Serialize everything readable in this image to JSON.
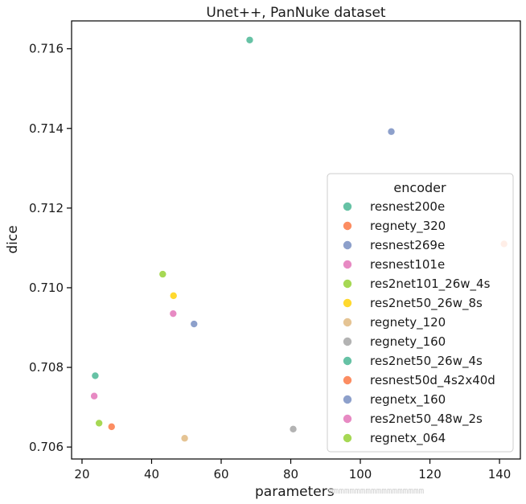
{
  "chart_data": {
    "type": "scatter",
    "title": "Unet++, PanNuke dataset",
    "xlabel": "parameters",
    "ylabel": "dice",
    "xlim": [
      17,
      146
    ],
    "ylim": [
      0.7057,
      0.7167
    ],
    "xticks": [
      20,
      40,
      60,
      80,
      100,
      120,
      140
    ],
    "yticks": [
      0.706,
      0.708,
      0.71,
      0.712,
      0.714,
      0.716
    ],
    "ytick_labels": [
      "0.706",
      "0.708",
      "0.710",
      "0.712",
      "0.714",
      "0.716"
    ],
    "legend_title": "encoder",
    "legend_position": "center-right",
    "series": [
      {
        "name": "resnest200e",
        "color": "#66c2a5",
        "x": [
          68.2
        ],
        "y": [
          0.71622
        ]
      },
      {
        "name": "regnety_320",
        "color": "#fc8d62",
        "x": [
          141.3
        ],
        "y": [
          0.7111
        ]
      },
      {
        "name": "resnest269e",
        "color": "#8da0cb",
        "x": [
          108.9
        ],
        "y": [
          0.71392
        ]
      },
      {
        "name": "resnest101e",
        "color": "#e78ac3",
        "x": [
          46.2
        ],
        "y": [
          0.70935
        ]
      },
      {
        "name": "res2net101_26w_4s",
        "color": "#a6d854",
        "x": [
          43.2
        ],
        "y": [
          0.71034
        ]
      },
      {
        "name": "res2net50_26w_8s",
        "color": "#ffd92f",
        "x": [
          46.3
        ],
        "y": [
          0.7098
        ]
      },
      {
        "name": "regnety_120",
        "color": "#e5c494",
        "x": [
          49.5
        ],
        "y": [
          0.70622
        ]
      },
      {
        "name": "regnety_160",
        "color": "#b3b3b3",
        "x": [
          80.7
        ],
        "y": [
          0.70645
        ]
      },
      {
        "name": "res2net50_26w_4s",
        "color": "#66c2a5",
        "x": [
          23.8
        ],
        "y": [
          0.70779
        ]
      },
      {
        "name": "resnest50d_4s2x40d",
        "color": "#fc8d62",
        "x": [
          28.5
        ],
        "y": [
          0.70651
        ]
      },
      {
        "name": "regnetx_160",
        "color": "#8da0cb",
        "x": [
          52.2
        ],
        "y": [
          0.70909
        ]
      },
      {
        "name": "res2net50_48w_2s",
        "color": "#e78ac3",
        "x": [
          23.5
        ],
        "y": [
          0.70728
        ]
      },
      {
        "name": "regnetx_064",
        "color": "#a6d854",
        "x": [
          24.9
        ],
        "y": [
          0.7066
        ]
      }
    ]
  }
}
